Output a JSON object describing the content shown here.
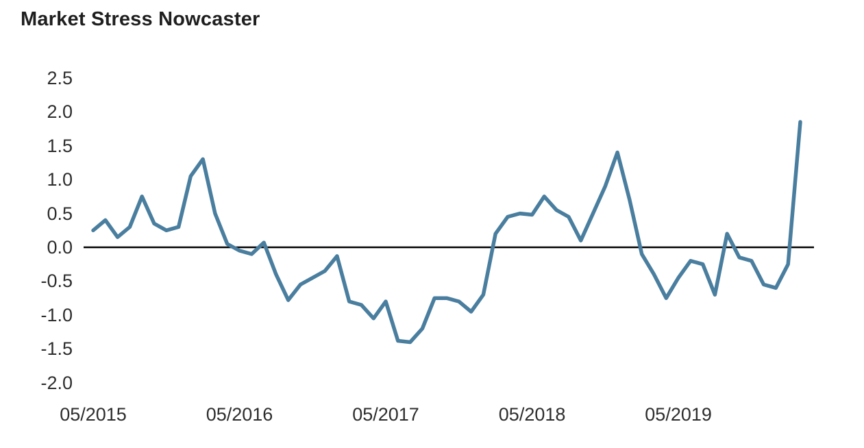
{
  "title": "Market Stress Nowcaster",
  "chart_data": {
    "type": "line",
    "title": "Market Stress Nowcaster",
    "series_name": "Market Stress Nowcaster",
    "x": [
      "05/2015",
      "06/2015",
      "07/2015",
      "08/2015",
      "09/2015",
      "10/2015",
      "11/2015",
      "12/2015",
      "01/2016",
      "02/2016",
      "03/2016",
      "04/2016",
      "05/2016",
      "06/2016",
      "07/2016",
      "08/2016",
      "09/2016",
      "10/2016",
      "11/2016",
      "12/2016",
      "01/2017",
      "02/2017",
      "03/2017",
      "04/2017",
      "05/2017",
      "06/2017",
      "07/2017",
      "08/2017",
      "09/2017",
      "10/2017",
      "11/2017",
      "12/2017",
      "01/2018",
      "02/2018",
      "03/2018",
      "04/2018",
      "05/2018",
      "06/2018",
      "07/2018",
      "08/2018",
      "09/2018",
      "10/2018",
      "11/2018",
      "12/2018",
      "01/2019",
      "02/2019",
      "03/2019",
      "04/2019",
      "05/2019",
      "06/2019",
      "07/2019",
      "08/2019",
      "09/2019",
      "10/2019",
      "11/2019",
      "12/2019",
      "01/2020",
      "02/2020",
      "03/2020"
    ],
    "values": [
      0.25,
      0.4,
      0.15,
      0.3,
      0.75,
      0.35,
      0.25,
      0.3,
      1.05,
      1.3,
      0.5,
      0.05,
      -0.05,
      -0.1,
      0.07,
      -0.4,
      -0.78,
      -0.55,
      -0.45,
      -0.35,
      -0.13,
      -0.8,
      -0.85,
      -1.05,
      -0.8,
      -1.38,
      -1.4,
      -1.2,
      -0.75,
      -0.75,
      -0.8,
      -0.95,
      -0.7,
      0.2,
      0.45,
      0.5,
      0.48,
      0.75,
      0.55,
      0.45,
      0.1,
      0.5,
      0.9,
      1.4,
      0.7,
      -0.1,
      -0.4,
      -0.75,
      -0.45,
      -0.2,
      -0.25,
      -0.7,
      0.2,
      -0.15,
      -0.2,
      -0.55,
      -0.6,
      -0.25,
      1.85
    ],
    "x_tick_labels": [
      "05/2015",
      "05/2016",
      "05/2017",
      "05/2018",
      "05/2019"
    ],
    "y_tick_labels": [
      "2.5",
      "2.0",
      "1.5",
      "1.0",
      "0.5",
      "0.0",
      "-0.5",
      "-1.0",
      "-1.5",
      "-2.0"
    ],
    "ylim": [
      -2.0,
      2.5
    ],
    "grid": false,
    "legend": false,
    "zero_baseline": true,
    "line_color": "#4a7e9f",
    "zero_line_color": "#000000",
    "background_color": "#ffffff",
    "xlabel": "",
    "ylabel": ""
  }
}
